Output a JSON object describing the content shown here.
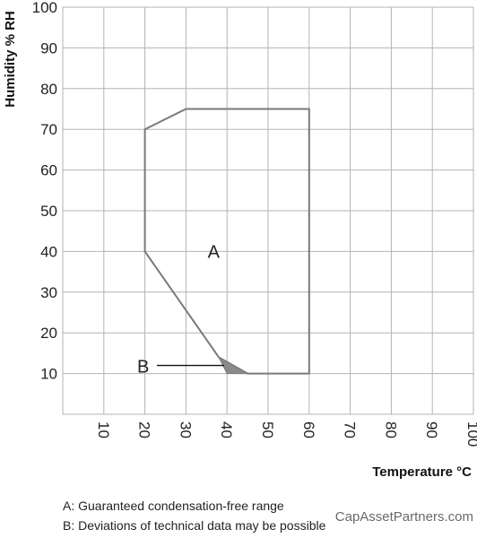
{
  "chart_data": {
    "type": "area",
    "xlabel": "Temperature °C",
    "ylabel": "Humidity % RH",
    "xlim": [
      0,
      100
    ],
    "ylim": [
      0,
      100
    ],
    "xticks": [
      "10",
      "20",
      "30",
      "40",
      "50",
      "60",
      "70",
      "80",
      "90",
      "100"
    ],
    "yticks": [
      "100",
      "90",
      "80",
      "70",
      "60",
      "50",
      "40",
      "30",
      "20",
      "10"
    ],
    "grid": true,
    "regions": [
      {
        "label": "A",
        "label_at": [
          20,
          40
        ],
        "points": [
          [
            20,
            40
          ],
          [
            20,
            70
          ],
          [
            30,
            75
          ],
          [
            60,
            75
          ],
          [
            60,
            10
          ],
          [
            45,
            10
          ],
          [
            38,
            14
          ]
        ]
      }
    ],
    "region_b": {
      "label": "B",
      "label_at": [
        0,
        12
      ],
      "pointer_to": [
        38,
        12
      ],
      "points": [
        [
          38,
          14
        ],
        [
          45,
          10
        ],
        [
          40,
          10
        ]
      ]
    },
    "notes": [
      "A: Guaranteed condensation-free range",
      "B: Deviations of technical data may be possible"
    ]
  },
  "watermark": "CapAssetPartners.com"
}
